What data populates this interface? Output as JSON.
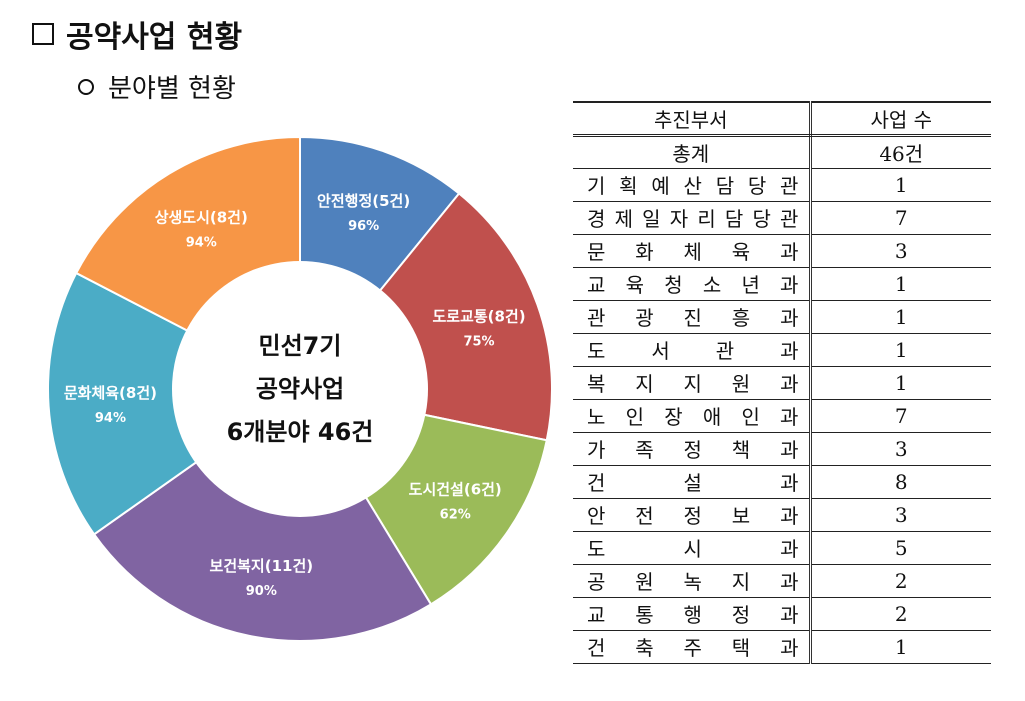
{
  "heading": {
    "marker": "□",
    "title": "공약사업 현황"
  },
  "subheading": {
    "marker": "○",
    "text": "분야별 현황"
  },
  "chart_data": {
    "type": "pie",
    "center_lines": [
      "민선7기",
      "공약사업",
      "6개분야 46건"
    ],
    "slices": [
      {
        "label": "안전행정(5건)",
        "count": 5,
        "percent_label": "96%",
        "color": "#4f81bd"
      },
      {
        "label": "도로교통(8건)",
        "count": 8,
        "percent_label": "75%",
        "color": "#c0504d"
      },
      {
        "label": "도시건설(6건)",
        "count": 6,
        "percent_label": "62%",
        "color": "#9bbb59"
      },
      {
        "label": "보건복지(11건)",
        "count": 11,
        "percent_label": "90%",
        "color": "#8064a2"
      },
      {
        "label": "문화체육(8건)",
        "count": 8,
        "percent_label": "94%",
        "color": "#4bacc6"
      },
      {
        "label": "상생도시(8건)",
        "count": 8,
        "percent_label": "94%",
        "color": "#f79646"
      }
    ]
  },
  "table": {
    "headers": [
      "추진부서",
      "사업 수"
    ],
    "total": {
      "label": "총계",
      "value": "46건"
    },
    "rows": [
      {
        "dept": [
          "기",
          "획",
          "예",
          "산",
          "담",
          "당",
          "관"
        ],
        "count": "1"
      },
      {
        "dept": [
          "경",
          "제",
          "일",
          "자",
          "리",
          "담",
          "당",
          "관"
        ],
        "count": "7"
      },
      {
        "dept": [
          "문",
          "화",
          "체",
          "육",
          "과"
        ],
        "count": "3"
      },
      {
        "dept": [
          "교",
          "육",
          "청",
          "소",
          "년",
          "과"
        ],
        "count": "1"
      },
      {
        "dept": [
          "관",
          "광",
          "진",
          "흥",
          "과"
        ],
        "count": "1"
      },
      {
        "dept": [
          "도",
          "서",
          "관",
          "과"
        ],
        "count": "1"
      },
      {
        "dept": [
          "복",
          "지",
          "지",
          "원",
          "과"
        ],
        "count": "1"
      },
      {
        "dept": [
          "노",
          "인",
          "장",
          "애",
          "인",
          "과"
        ],
        "count": "7"
      },
      {
        "dept": [
          "가",
          "족",
          "정",
          "책",
          "과"
        ],
        "count": "3"
      },
      {
        "dept": [
          "건",
          "설",
          "과"
        ],
        "count": "8"
      },
      {
        "dept": [
          "안",
          "전",
          "정",
          "보",
          "과"
        ],
        "count": "3"
      },
      {
        "dept": [
          "도",
          "시",
          "과"
        ],
        "count": "5"
      },
      {
        "dept": [
          "공",
          "원",
          "녹",
          "지",
          "과"
        ],
        "count": "2"
      },
      {
        "dept": [
          "교",
          "통",
          "행",
          "정",
          "과"
        ],
        "count": "2"
      },
      {
        "dept": [
          "건",
          "축",
          "주",
          "택",
          "과"
        ],
        "count": "1"
      }
    ]
  }
}
